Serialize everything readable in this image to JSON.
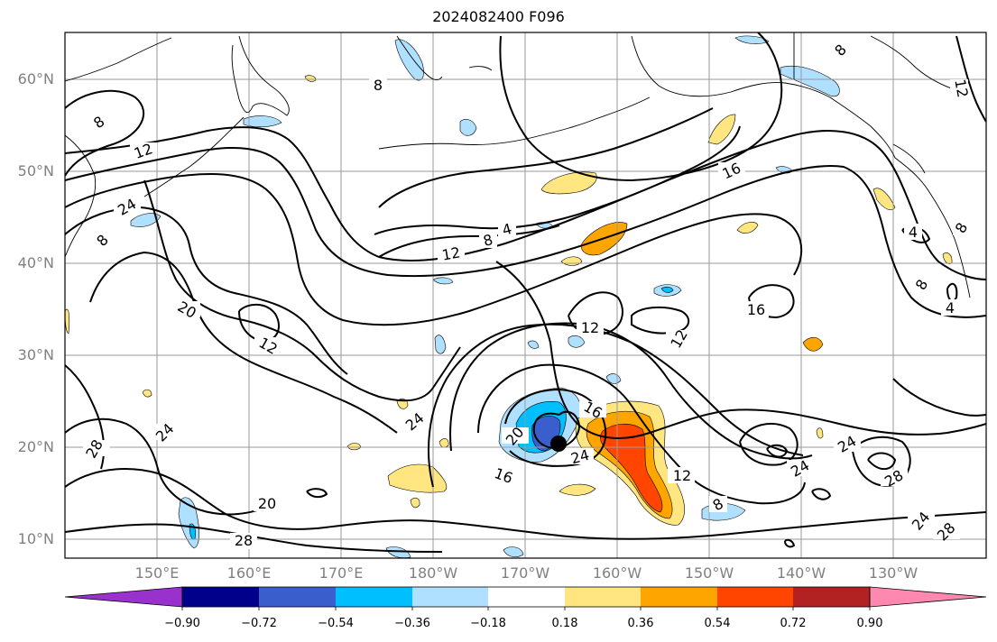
{
  "title": "2024082400 F096",
  "lat_labels": [
    "60°N",
    "50°N",
    "40°N",
    "30°N",
    "20°N",
    "10°N"
  ],
  "lon_labels": [
    "150°E",
    "160°E",
    "170°E",
    "180°W",
    "170°W",
    "160°W",
    "150°W",
    "140°W",
    "130°W"
  ],
  "contour_labels": [
    "8",
    "12",
    "24",
    "8",
    "20",
    "12",
    "28",
    "20",
    "28",
    "24",
    "20",
    "16",
    "24",
    "16",
    "4",
    "8",
    "12",
    "12",
    "16",
    "12",
    "16",
    "8",
    "24",
    "24",
    "12",
    "8",
    "24",
    "28",
    "24",
    "28",
    "4",
    "8",
    "4",
    "12",
    "8",
    "8"
  ],
  "colorbar": {
    "colors": [
      "#9932cc",
      "#00008b",
      "#3a5fcd",
      "#00bfff",
      "#b0e0ff",
      "#ffffff",
      "#ffe680",
      "#ffa500",
      "#ff4500",
      "#b22222",
      "#ff88b0"
    ],
    "tick_labels": [
      "−0.90",
      "−0.72",
      "−0.54",
      "−0.36",
      "−0.18",
      "0.18",
      "0.36",
      "0.54",
      "0.72",
      "0.90"
    ]
  }
}
